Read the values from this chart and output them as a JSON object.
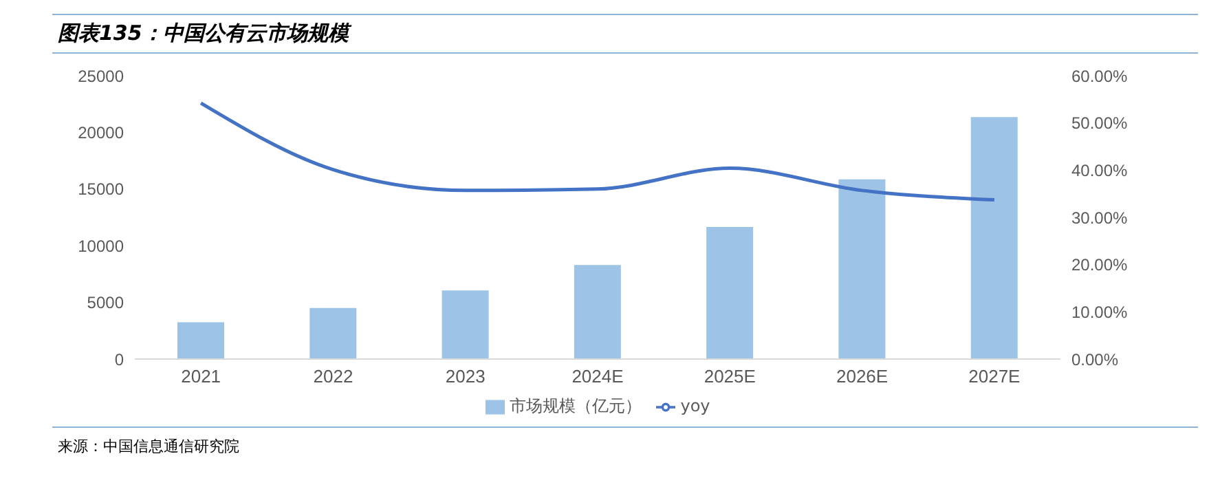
{
  "chart_data": {
    "type": "bar",
    "title": "图表135：中国公有云市场规模",
    "categories": [
      "2021",
      "2022",
      "2023",
      "2024E",
      "2025E",
      "2026E",
      "2027E"
    ],
    "series": [
      {
        "name": "市场规模（亿元）",
        "color": "#9dc3e6",
        "values": [
          3250,
          4500,
          6050,
          8300,
          11650,
          15850,
          21350
        ]
      },
      {
        "name": "yoy",
        "type": "line",
        "axis": "y2",
        "color": "#4472c4",
        "values": [
          54.2,
          40.1,
          35.7,
          36,
          40.4,
          35.7,
          33.7
        ]
      }
    ],
    "ylim": [
      0,
      25000
    ],
    "yticks": [
      0,
      5000,
      10000,
      15000,
      20000,
      25000
    ],
    "y2lim": [
      0,
      60
    ],
    "y2ticks": [
      {
        "value": 0,
        "label": "0.00%"
      },
      {
        "value": 10,
        "label": "10.00%"
      },
      {
        "value": 20,
        "label": "20.00%"
      },
      {
        "value": 30,
        "label": "30.00%"
      },
      {
        "value": 40,
        "label": "40.00%"
      },
      {
        "value": 50,
        "label": "50.00%"
      },
      {
        "value": 60,
        "label": "60.00%"
      }
    ],
    "legend": "bottom",
    "grid": false,
    "marker": "none",
    "annotations": [
      "来源：中国信息通信研究院"
    ]
  }
}
